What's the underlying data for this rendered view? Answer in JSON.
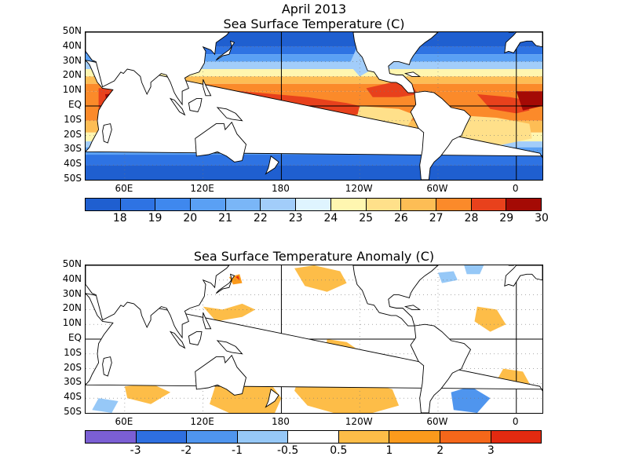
{
  "top_title_line1": "April 2013",
  "top_title_line2": "Sea Surface Temperature (C)",
  "bottom_title": "Sea Surface Temperature Anomaly (C)",
  "lat_labels": [
    "50N",
    "40N",
    "30N",
    "20N",
    "10N",
    "EQ",
    "10S",
    "20S",
    "30S",
    "40S",
    "50S"
  ],
  "lon_labels": [
    "60E",
    "120E",
    "180",
    "120W",
    "60W",
    "0"
  ],
  "sst_scale": {
    "labels": [
      "18",
      "19",
      "20",
      "21",
      "22",
      "23",
      "24",
      "25",
      "26",
      "27",
      "28",
      "29",
      "30"
    ],
    "colors": [
      "#1f5fd0",
      "#2e73e3",
      "#3f88ee",
      "#5aa0f4",
      "#7ab6f7",
      "#a2cdfa",
      "#dff4ff",
      "#fff6b0",
      "#ffe08a",
      "#fdbd55",
      "#fb8a2a",
      "#e8411c",
      "#a40a05"
    ]
  },
  "anom_scale": {
    "labels": [
      "-3",
      "-2",
      "-1",
      "-0.5",
      "0.5",
      "1",
      "2",
      "3"
    ],
    "colors": [
      "#7b5fd4",
      "#2e6fe0",
      "#4f95ee",
      "#96c8f7",
      "#ffffff",
      "#fdbd48",
      "#fb9a1c",
      "#f5671a",
      "#e32a10"
    ]
  },
  "chart_data": [
    {
      "type": "heatmap",
      "title": "Sea Surface Temperature (C)",
      "subtitle": "April 2013",
      "lat_range": [
        "50S",
        "50N"
      ],
      "lon_range": [
        "30E",
        "20E"
      ],
      "levels": [
        18,
        19,
        20,
        21,
        22,
        23,
        24,
        25,
        26,
        27,
        28,
        29,
        30
      ]
    },
    {
      "type": "heatmap",
      "title": "Sea Surface Temperature Anomaly (C)",
      "lat_range": [
        "50S",
        "50N"
      ],
      "lon_range": [
        "30E",
        "20E"
      ],
      "levels": [
        -3,
        -2,
        -1,
        -0.5,
        0.5,
        1,
        2,
        3
      ]
    }
  ]
}
